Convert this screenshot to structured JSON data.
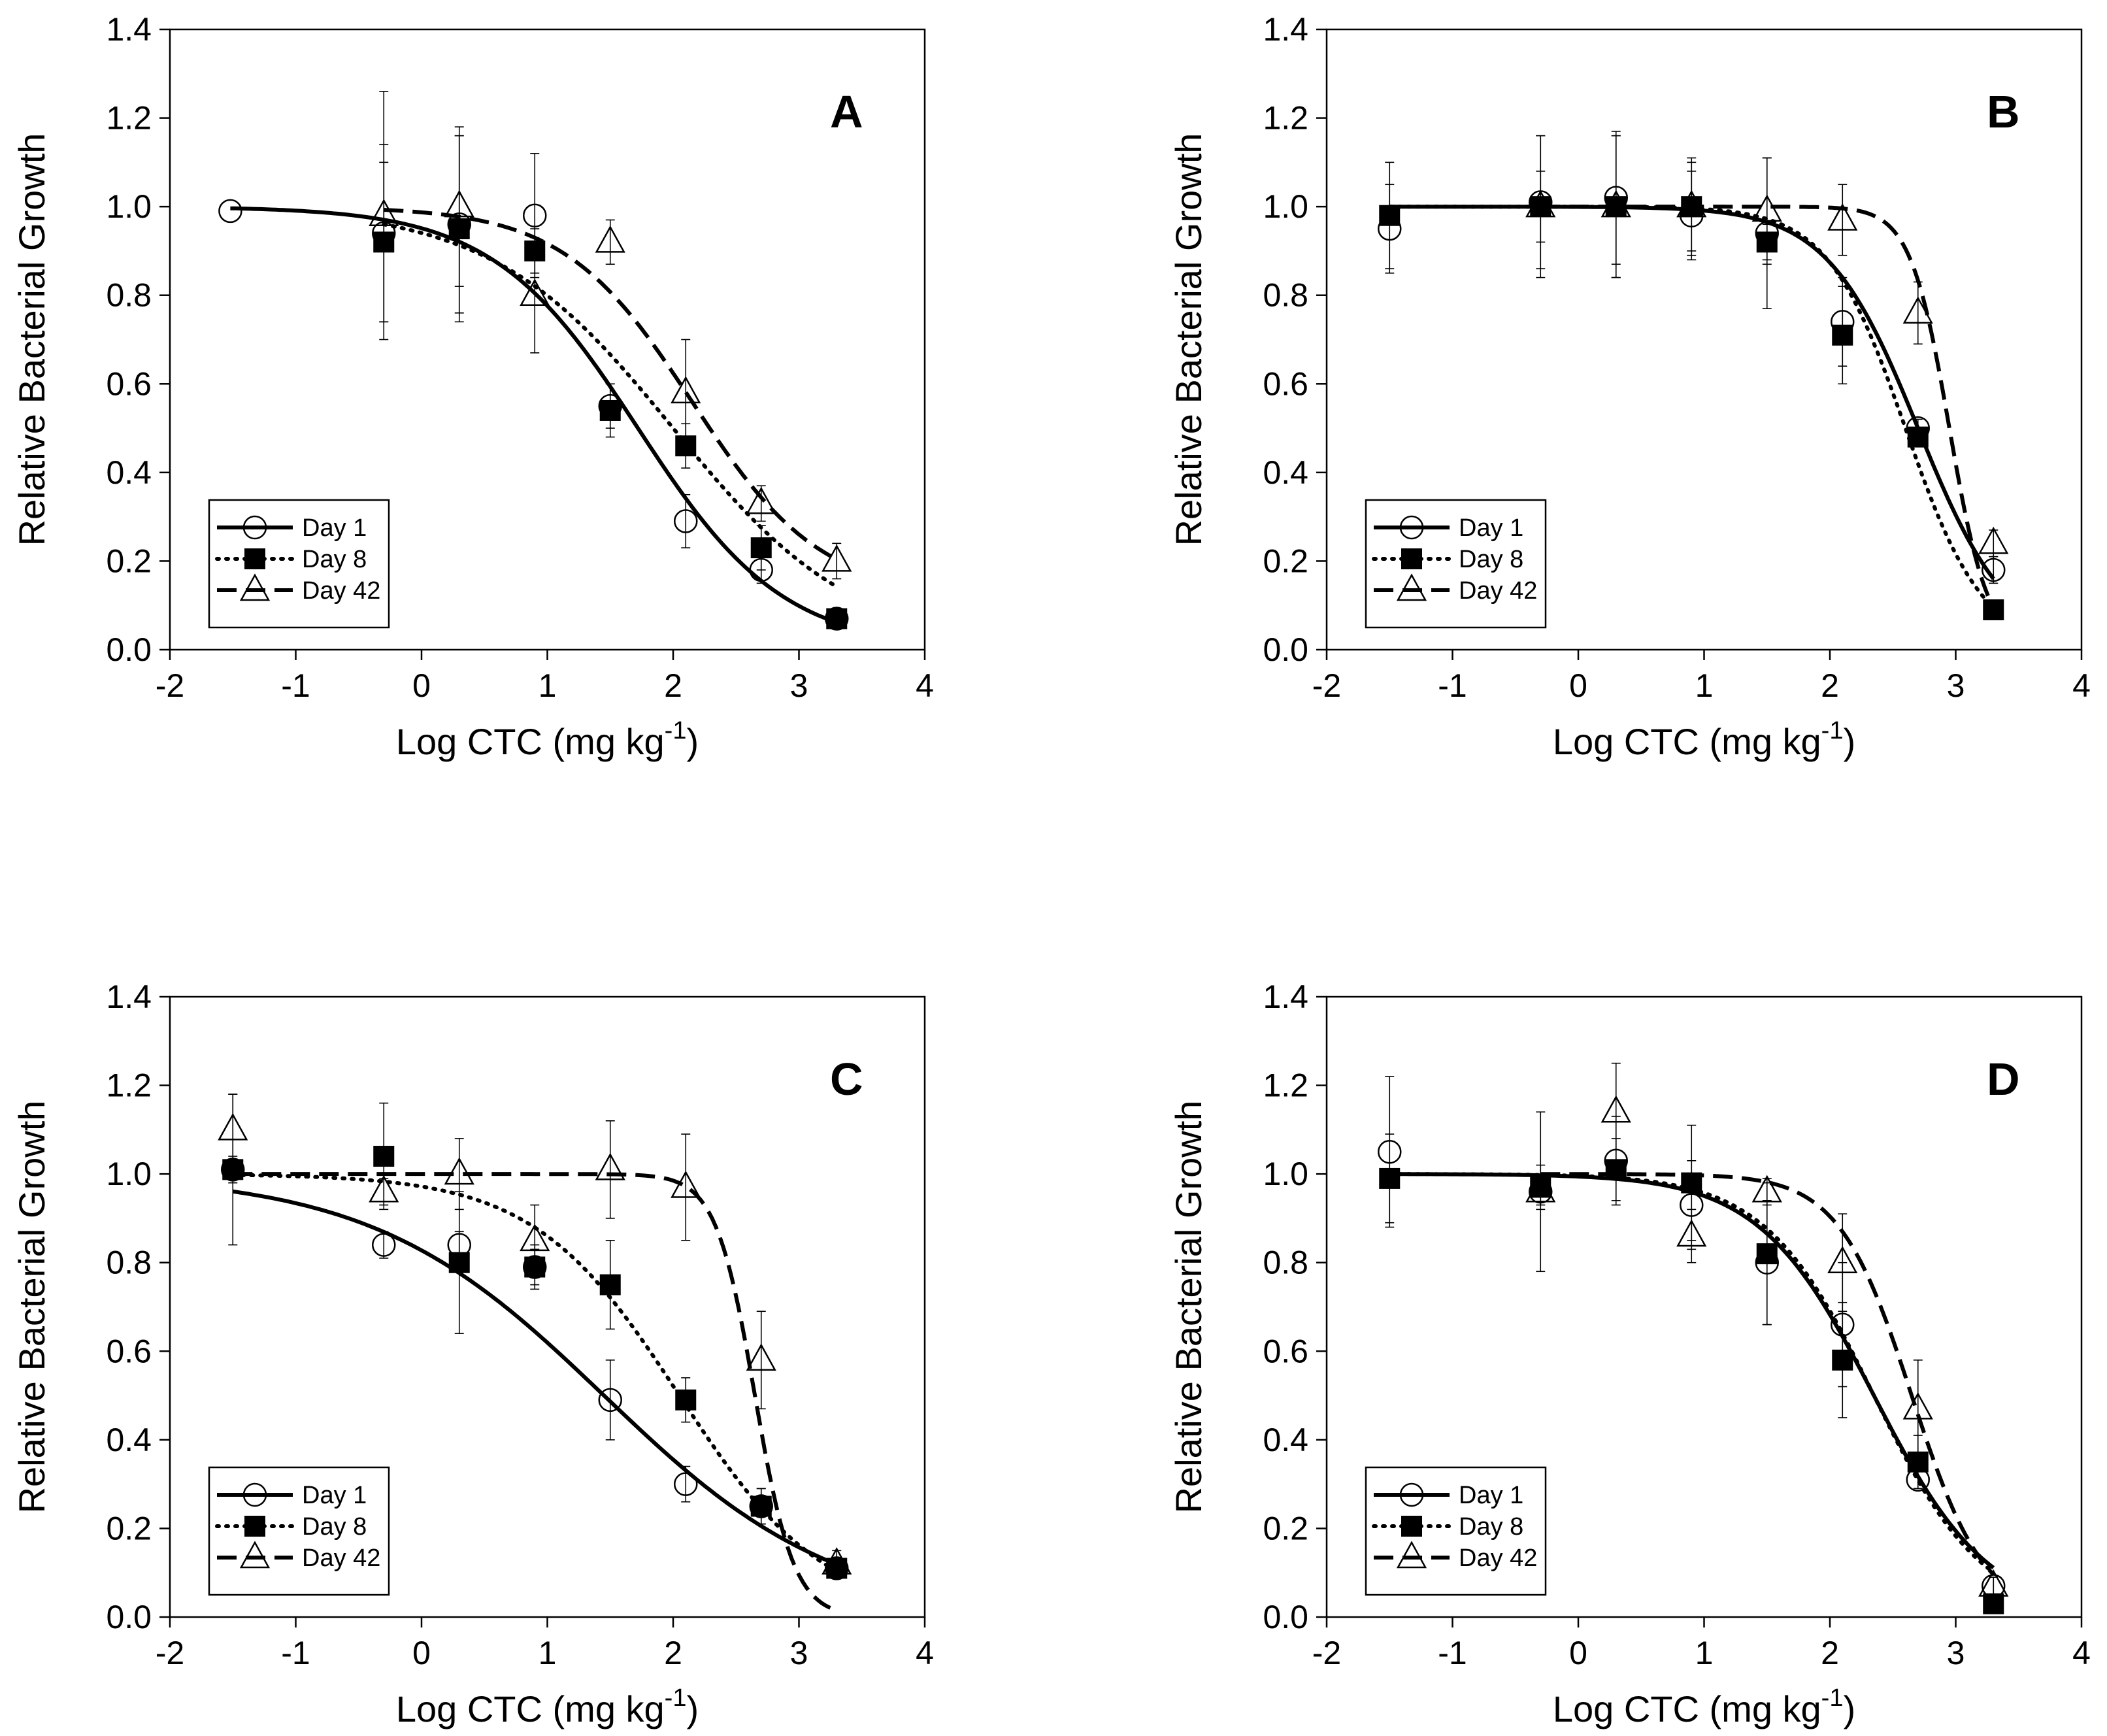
{
  "chart_data": [
    {
      "type": "line",
      "panel_label": "A",
      "xlabel": "Log CTC (mg kg",
      "xlabel_sup": "-1",
      "xlabel_end": ")",
      "ylabel": "Relative Bacterial Growth",
      "xlim": [
        -2,
        4
      ],
      "ylim": [
        0,
        1.4
      ],
      "xticks": [
        -2,
        -1,
        0,
        1,
        2,
        3,
        4
      ],
      "yticks": [
        0,
        0.2,
        0.4,
        0.6,
        0.8,
        1.0,
        1.2,
        1.4
      ],
      "ytick_labels": [
        "0.0",
        "0.2",
        "0.4",
        "0.6",
        "0.8",
        "1.0",
        "1.2",
        "1.4"
      ],
      "legend_position": "bottom-left",
      "series": [
        {
          "name": "Day 1",
          "marker": "open-circle",
          "line": "solid",
          "x": [
            -1.52,
            -0.3,
            0.3,
            0.9,
            1.5,
            2.1,
            2.7,
            3.3
          ],
          "y": [
            0.99,
            0.94,
            0.96,
            0.98,
            0.55,
            0.29,
            0.18,
            0.07
          ],
          "err": [
            0.0,
            0.2,
            0.2,
            0.14,
            0.05,
            0.06,
            0.03,
            0.02
          ],
          "fit": {
            "top": 1.0,
            "bottom": 0.0,
            "x50": 1.72,
            "slope": 0.75
          }
        },
        {
          "name": "Day 8",
          "marker": "filled-square",
          "line": "dotted",
          "x": [
            -0.3,
            0.3,
            0.9,
            1.5,
            2.1,
            2.7,
            3.3
          ],
          "y": [
            0.92,
            0.95,
            0.9,
            0.54,
            0.46,
            0.23,
            0.07
          ],
          "err": [
            0.18,
            0.21,
            0.05,
            0.06,
            0.05,
            0.05,
            0.02
          ],
          "fit": {
            "top": 1.0,
            "bottom": 0.0,
            "x50": 2.0,
            "slope": 0.6
          }
        },
        {
          "name": "Day 42",
          "marker": "open-triangle",
          "line": "dashed",
          "x": [
            -0.3,
            0.3,
            0.9,
            1.5,
            2.1,
            2.7,
            3.3
          ],
          "y": [
            0.98,
            1.0,
            0.8,
            0.92,
            0.58,
            0.33,
            0.2
          ],
          "err": [
            0.28,
            0.18,
            0.13,
            0.05,
            0.12,
            0.04,
            0.04
          ],
          "fit": {
            "top": 1.0,
            "bottom": 0.12,
            "x50": 2.15,
            "slope": 0.85
          }
        }
      ]
    },
    {
      "type": "line",
      "panel_label": "B",
      "xlabel": "Log CTC (mg kg",
      "xlabel_sup": "-1",
      "xlabel_end": ")",
      "ylabel": "Relative Bacterial Growth",
      "xlim": [
        -2,
        4
      ],
      "ylim": [
        0,
        1.4
      ],
      "xticks": [
        -2,
        -1,
        0,
        1,
        2,
        3,
        4
      ],
      "yticks": [
        0,
        0.2,
        0.4,
        0.6,
        0.8,
        1.0,
        1.2,
        1.4
      ],
      "ytick_labels": [
        "0.0",
        "0.2",
        "0.4",
        "0.6",
        "0.8",
        "1.0",
        "1.2",
        "1.4"
      ],
      "legend_position": "bottom-left",
      "series": [
        {
          "name": "Day 1",
          "marker": "open-circle",
          "line": "solid",
          "x": [
            -1.5,
            -0.3,
            0.3,
            0.9,
            1.5,
            2.1,
            2.7,
            3.3
          ],
          "y": [
            0.95,
            1.01,
            1.02,
            0.98,
            0.94,
            0.74,
            0.5,
            0.18
          ],
          "err": [
            0.1,
            0.15,
            0.15,
            0.1,
            0.17,
            0.1,
            0.02,
            0.03
          ],
          "fit": {
            "top": 1.0,
            "bottom": 0.0,
            "x50": 2.7,
            "slope": 1.2
          }
        },
        {
          "name": "Day 8",
          "marker": "filled-square",
          "line": "dotted",
          "x": [
            -1.5,
            -0.3,
            0.3,
            0.9,
            1.5,
            2.1,
            2.7,
            3.3
          ],
          "y": [
            0.98,
            1.0,
            1.0,
            1.0,
            0.92,
            0.71,
            0.48,
            0.09
          ],
          "err": [
            0.12,
            0.08,
            0.16,
            0.11,
            0.04,
            0.11,
            0.02,
            0.0
          ],
          "fit": {
            "top": 1.0,
            "bottom": 0.0,
            "x50": 2.6,
            "slope": 1.4
          }
        },
        {
          "name": "Day 42",
          "marker": "open-triangle",
          "line": "dashed",
          "x": [
            -0.3,
            0.3,
            0.9,
            1.5,
            2.1,
            2.7,
            3.3
          ],
          "y": [
            1.0,
            1.0,
            1.0,
            0.99,
            0.97,
            0.76,
            0.24
          ],
          "err": [
            0.16,
            0.16,
            0.1,
            0.12,
            0.08,
            0.07,
            0.03
          ],
          "fit": {
            "top": 1.0,
            "bottom": 0.0,
            "x50": 2.95,
            "slope": 2.8
          }
        }
      ]
    },
    {
      "type": "line",
      "panel_label": "C",
      "xlabel": "Log CTC (mg kg",
      "xlabel_sup": "-1",
      "xlabel_end": ")",
      "ylabel": "Relative Bacterial Growth",
      "xlim": [
        -2,
        4
      ],
      "ylim": [
        0,
        1.4
      ],
      "xticks": [
        -2,
        -1,
        0,
        1,
        2,
        3,
        4
      ],
      "yticks": [
        0,
        0.2,
        0.4,
        0.6,
        0.8,
        1.0,
        1.2,
        1.4
      ],
      "ytick_labels": [
        "0.0",
        "0.2",
        "0.4",
        "0.6",
        "0.8",
        "1.0",
        "1.2",
        "1.4"
      ],
      "legend_position": "bottom-left",
      "series": [
        {
          "name": "Day 1",
          "marker": "open-circle",
          "line": "solid",
          "x": [
            -1.5,
            -0.3,
            0.3,
            0.9,
            1.5,
            2.1,
            2.7,
            3.3
          ],
          "y": [
            1.01,
            0.84,
            0.84,
            0.79,
            0.49,
            0.3,
            0.25,
            0.11
          ],
          "err": [
            0.17,
            0.03,
            0.03,
            0.04,
            0.09,
            0.04,
            0.04,
            0.02
          ],
          "fit": {
            "top": 1.0,
            "bottom": 0.0,
            "x50": 1.45,
            "slope": 0.47
          }
        },
        {
          "name": "Day 8",
          "marker": "filled-square",
          "line": "dotted",
          "x": [
            -1.5,
            -0.3,
            0.3,
            0.9,
            1.5,
            2.1,
            2.7,
            3.3
          ],
          "y": [
            1.01,
            1.04,
            0.8,
            0.79,
            0.75,
            0.49,
            0.25,
            0.11
          ],
          "err": [
            0.03,
            0.12,
            0.16,
            0.05,
            0.1,
            0.05,
            0.04,
            0.02
          ],
          "fit": {
            "top": 1.0,
            "bottom": 0.0,
            "x50": 2.05,
            "slope": 0.75
          }
        },
        {
          "name": "Day 42",
          "marker": "open-triangle",
          "line": "dashed",
          "x": [
            -1.5,
            -0.3,
            0.3,
            0.9,
            1.5,
            2.1,
            2.7,
            3.3
          ],
          "y": [
            1.1,
            0.96,
            1.0,
            0.85,
            1.01,
            0.97,
            0.58,
            0.12
          ],
          "err": [
            0.08,
            0.03,
            0.08,
            0.08,
            0.11,
            0.12,
            0.11,
            0.03
          ],
          "fit": {
            "top": 1.0,
            "bottom": 0.0,
            "x50": 2.65,
            "slope": 2.8
          }
        }
      ]
    },
    {
      "type": "line",
      "panel_label": "D",
      "xlabel": "Log CTC (mg kg",
      "xlabel_sup": "-1",
      "xlabel_end": ")",
      "ylabel": "Relative Bacterial Growth",
      "xlim": [
        -2,
        4
      ],
      "ylim": [
        0,
        1.4
      ],
      "xticks": [
        -2,
        -1,
        0,
        1,
        2,
        3,
        4
      ],
      "yticks": [
        0,
        0.2,
        0.4,
        0.6,
        0.8,
        1.0,
        1.2,
        1.4
      ],
      "ytick_labels": [
        "0.0",
        "0.2",
        "0.4",
        "0.6",
        "0.8",
        "1.0",
        "1.2",
        "1.4"
      ],
      "legend_position": "bottom-left",
      "series": [
        {
          "name": "Day 1",
          "marker": "open-circle",
          "line": "solid",
          "x": [
            -1.5,
            -0.3,
            0.3,
            0.9,
            1.5,
            2.1,
            2.7,
            3.3
          ],
          "y": [
            1.05,
            0.96,
            1.03,
            0.93,
            0.8,
            0.66,
            0.31,
            0.07
          ],
          "err": [
            0.17,
            0.18,
            0.1,
            0.1,
            0.14,
            0.14,
            0.02,
            0.02
          ],
          "fit": {
            "top": 1.0,
            "bottom": 0.0,
            "x50": 2.35,
            "slope": 0.95
          }
        },
        {
          "name": "Day 8",
          "marker": "filled-square",
          "line": "dotted",
          "x": [
            -1.5,
            -0.3,
            0.3,
            0.9,
            1.5,
            2.1,
            2.7,
            3.3
          ],
          "y": [
            0.99,
            0.97,
            1.01,
            0.98,
            0.82,
            0.58,
            0.35,
            0.03
          ],
          "err": [
            0.1,
            0.05,
            0.07,
            0.13,
            0.16,
            0.13,
            0.06,
            0.0
          ],
          "fit": {
            "top": 1.0,
            "bottom": 0.0,
            "x50": 2.35,
            "slope": 1.0
          }
        },
        {
          "name": "Day 42",
          "marker": "open-triangle",
          "line": "dashed",
          "x": [
            -0.3,
            0.3,
            0.9,
            1.5,
            2.1,
            2.7,
            3.3
          ],
          "y": [
            0.96,
            1.14,
            0.86,
            0.96,
            0.8,
            0.47,
            0.07
          ],
          "err": [
            0.03,
            0.11,
            0.06,
            0.03,
            0.11,
            0.11,
            0.02
          ],
          "fit": {
            "top": 1.0,
            "bottom": 0.0,
            "x50": 2.65,
            "slope": 1.5
          }
        }
      ]
    }
  ]
}
